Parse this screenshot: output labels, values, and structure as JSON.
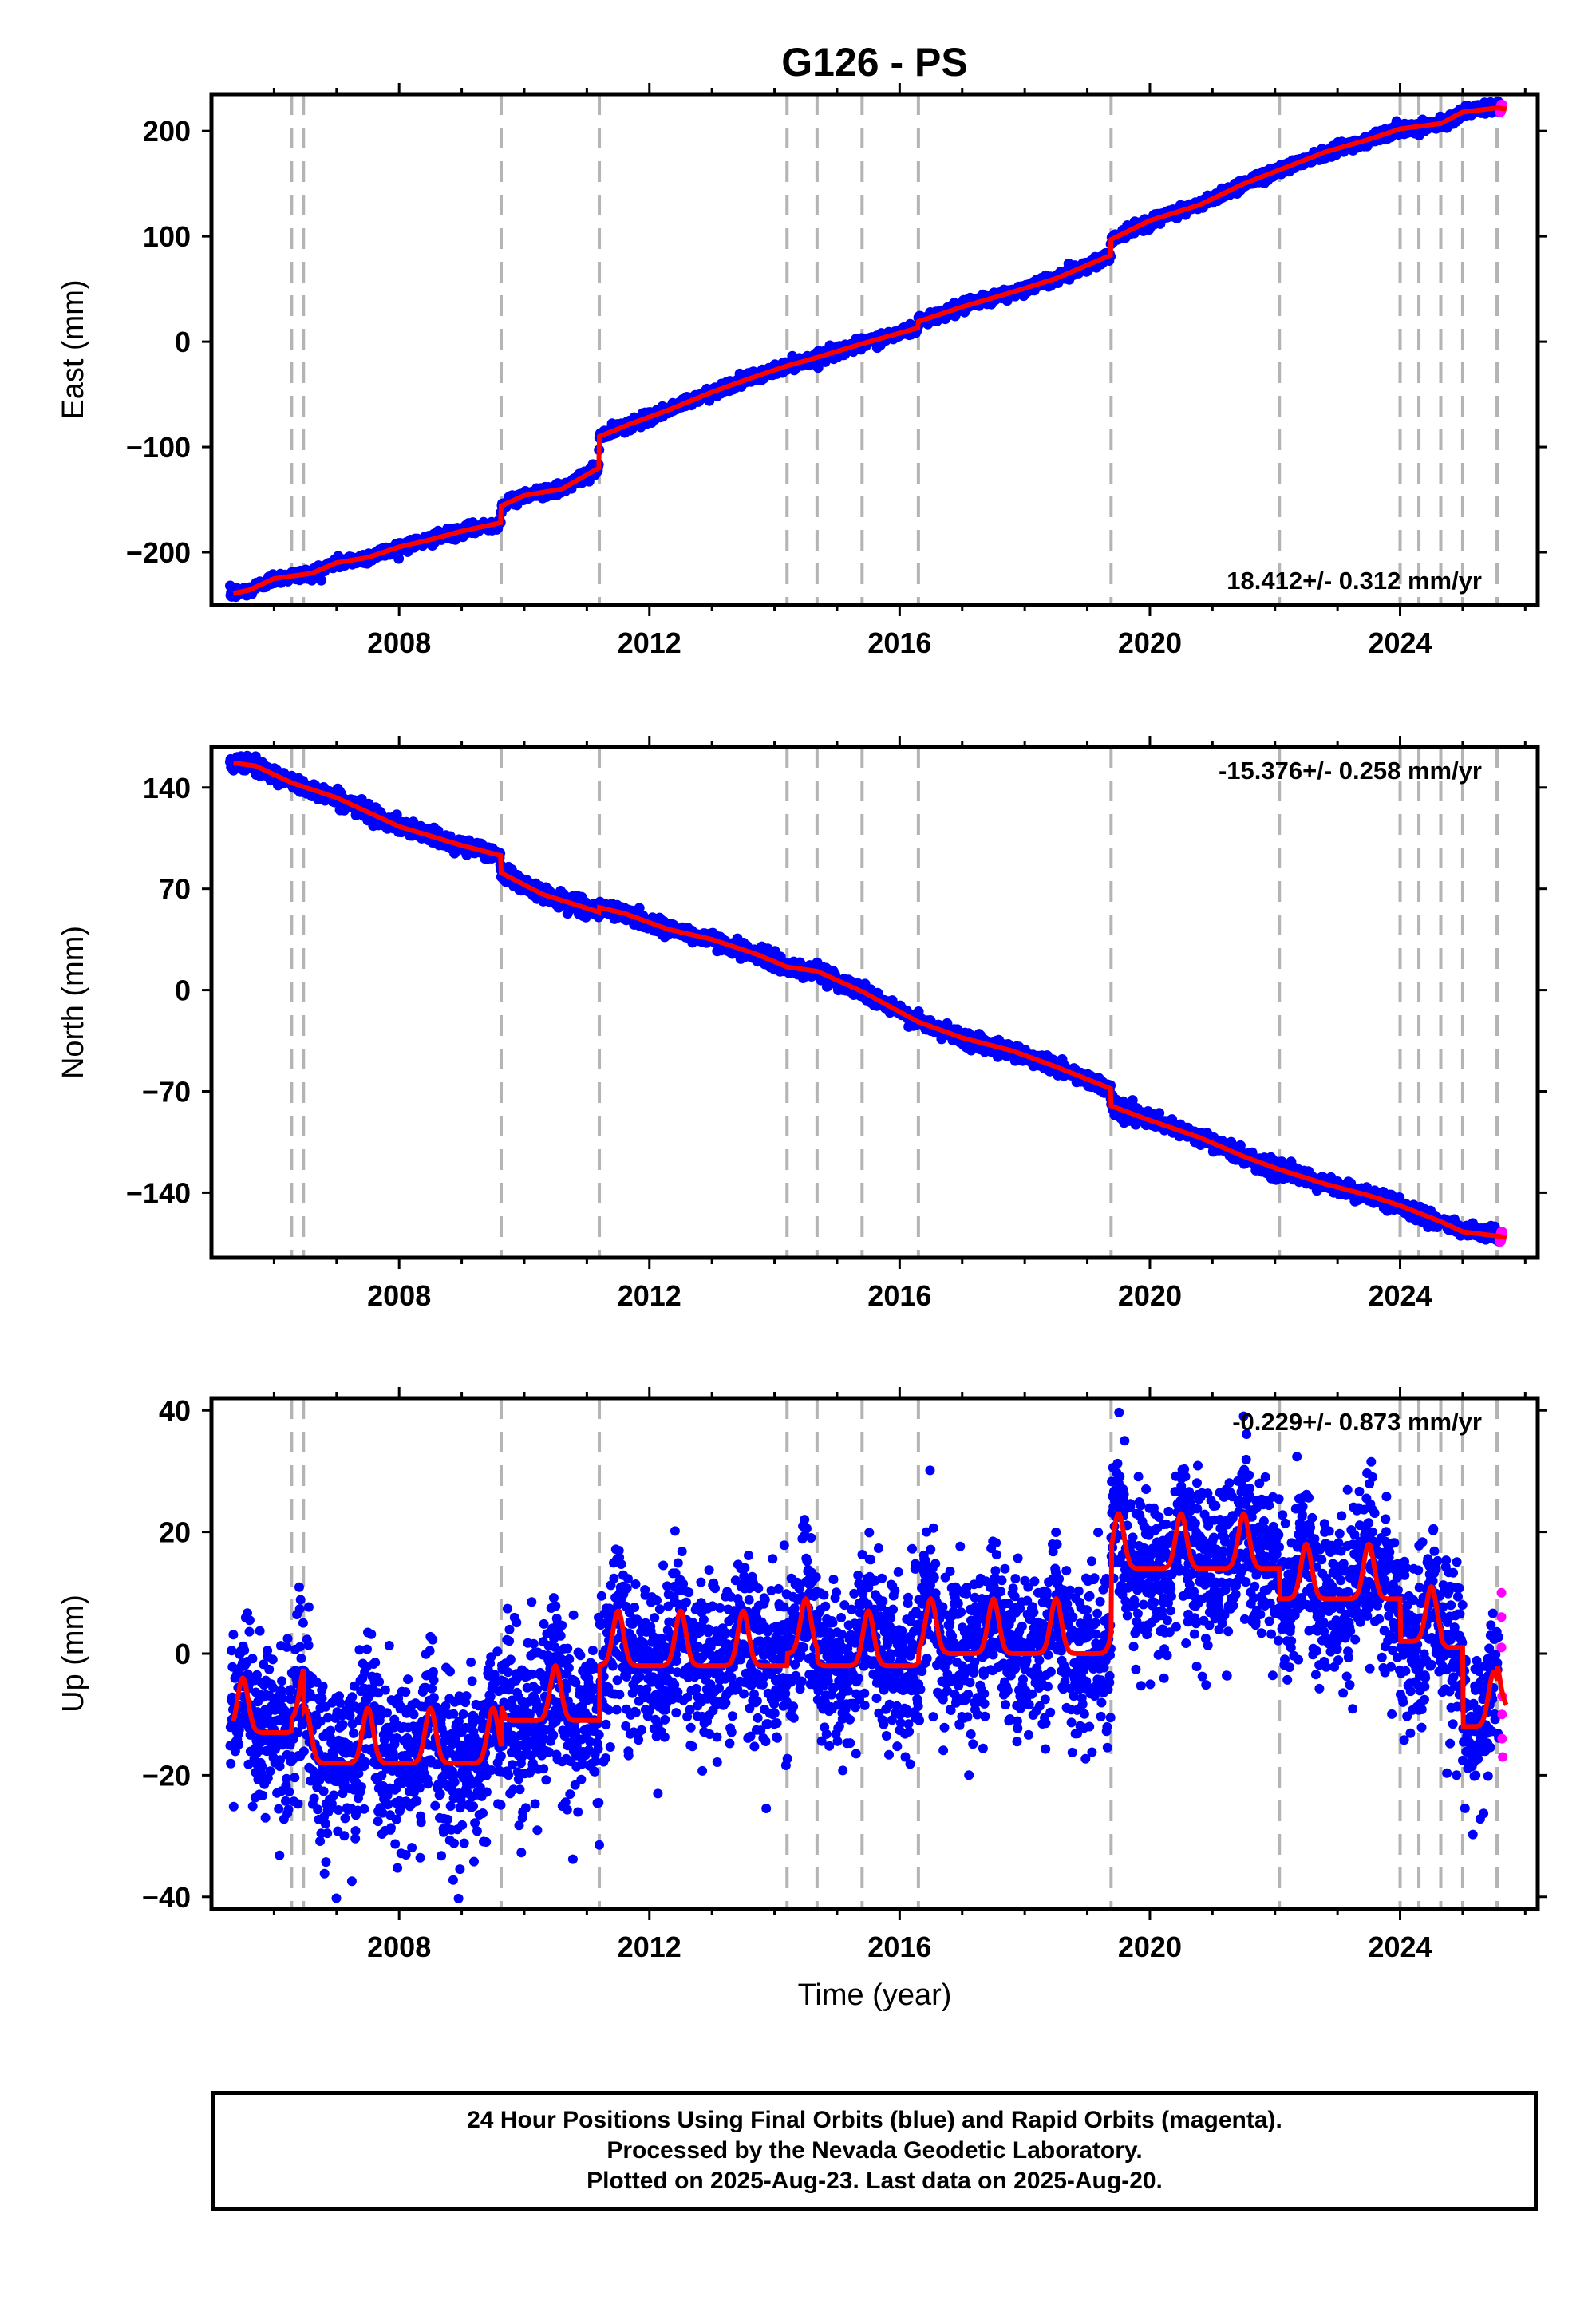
{
  "title": "G126 - PS",
  "xlabel": "Time (year)",
  "footer": {
    "line1": "24 Hour Positions Using Final Orbits (blue) and Rapid Orbits (magenta).",
    "line2": "Processed by the Nevada Geodetic Laboratory.",
    "line3": "Plotted on 2025-Aug-23. Last data on 2025-Aug-20."
  },
  "colors": {
    "final_orbits": "#0000ff",
    "rapid_orbits": "#ff00ff",
    "model": "#ff0000",
    "event_lines": "#b4b4b4"
  },
  "chart_data": [
    {
      "type": "scatter",
      "panel": "east",
      "ylabel": "East (mm)",
      "xlim": [
        2005.0,
        2026.2
      ],
      "ylim": [
        -250,
        235
      ],
      "yticks": [
        -200,
        -100,
        0,
        100,
        200
      ],
      "xticks": [
        2008,
        2012,
        2016,
        2020,
        2024
      ],
      "rate_label": "18.412+/- 0.312 mm/yr",
      "rate_position": "bottom-right",
      "grid": false,
      "event_lines": [
        2006.28,
        2006.47,
        2009.63,
        2011.2,
        2014.2,
        2014.68,
        2015.4,
        2016.3,
        2019.38,
        2022.07,
        2024.0,
        2024.3,
        2024.65,
        2025.0,
        2025.55
      ],
      "model": {
        "x": [
          2005.35,
          2005.6,
          2006.0,
          2006.6,
          2007.0,
          2007.5,
          2008.0,
          2008.5,
          2009.0,
          2009.62,
          2009.63,
          2010.0,
          2010.6,
          2011.19,
          2011.2,
          2011.7,
          2012.3,
          2013.0,
          2013.6,
          2014.2,
          2014.68,
          2015.4,
          2016.29,
          2016.3,
          2017.0,
          2017.8,
          2018.5,
          2019.37,
          2019.38,
          2020.0,
          2020.8,
          2021.5,
          2022.07,
          2022.8,
          2023.5,
          2024.0,
          2024.65,
          2025.0,
          2025.55,
          2025.7
        ],
        "y": [
          -239,
          -236,
          -225,
          -220,
          -210,
          -205,
          -195,
          -188,
          -180,
          -172,
          -156,
          -146,
          -140,
          -120,
          -90,
          -78,
          -65,
          -48,
          -35,
          -23,
          -15,
          -2,
          13,
          19,
          33,
          47,
          60,
          82,
          97,
          115,
          130,
          150,
          163,
          180,
          192,
          202,
          207,
          218,
          222,
          221
        ]
      },
      "final_orbits": "dense daily positions, 2005.3-2025.6, scatter about the model of roughly +/-3 mm",
      "rapid_orbits": "last days near 2025.6 around 222 mm"
    },
    {
      "type": "scatter",
      "panel": "north",
      "ylabel": "North (mm)",
      "xlim": [
        2005.0,
        2026.2
      ],
      "ylim": [
        -185,
        168
      ],
      "yticks": [
        -140,
        -70,
        0,
        70,
        140
      ],
      "xticks": [
        2008,
        2012,
        2016,
        2020,
        2024
      ],
      "rate_label": "-15.376+/- 0.258 mm/yr",
      "rate_position": "top-right",
      "grid": false,
      "event_lines": [
        2006.28,
        2006.47,
        2009.63,
        2011.2,
        2014.2,
        2014.68,
        2015.4,
        2016.3,
        2019.38,
        2022.07,
        2024.0,
        2024.3,
        2024.65,
        2025.0,
        2025.55
      ],
      "model": {
        "x": [
          2005.35,
          2005.7,
          2006.3,
          2007.0,
          2008.0,
          2009.0,
          2009.62,
          2009.63,
          2010.3,
          2011.19,
          2011.2,
          2011.6,
          2012.3,
          2013.0,
          2013.7,
          2014.2,
          2014.68,
          2015.4,
          2016.3,
          2017.0,
          2017.8,
          2018.5,
          2019.37,
          2019.38,
          2020.0,
          2020.8,
          2021.5,
          2022.07,
          2022.8,
          2023.5,
          2024.0,
          2024.65,
          2025.0,
          2025.55,
          2025.7
        ],
        "y": [
          157,
          155,
          143,
          133,
          113,
          100,
          93,
          81,
          66,
          54,
          57,
          53,
          42,
          35,
          25,
          16,
          13,
          -1,
          -22,
          -33,
          -42,
          -53,
          -68,
          -80,
          -90,
          -102,
          -115,
          -124,
          -134,
          -142,
          -149,
          -160,
          -167,
          -170,
          -171
        ]
      },
      "final_orbits": "dense daily positions, 2005.3-2025.6, scatter about the model of roughly +/-3 mm",
      "rapid_orbits": "last days near 2025.6 around -168 mm"
    },
    {
      "type": "scatter",
      "panel": "up",
      "ylabel": "Up (mm)",
      "xlim": [
        2005.0,
        2026.2
      ],
      "ylim": [
        -42,
        42
      ],
      "yticks": [
        -40,
        -20,
        0,
        20,
        40
      ],
      "xticks": [
        2008,
        2012,
        2016,
        2020,
        2024
      ],
      "rate_label": "-0.229+/- 0.873 mm/yr",
      "rate_position": "top-right",
      "grid": false,
      "event_lines": [
        2006.28,
        2006.47,
        2009.63,
        2011.2,
        2014.2,
        2014.68,
        2015.4,
        2016.3,
        2019.38,
        2022.07,
        2024.0,
        2024.3,
        2024.65,
        2025.0,
        2025.55
      ],
      "model": {
        "description": "offset segments between event lines plus annual sinusoid (amplitude about 4-5 mm)",
        "segment_offsets": [
          {
            "x": [
              2005.35,
              2006.28
            ],
            "y": -10
          },
          {
            "x": [
              2006.28,
              2006.47
            ],
            "y": -8
          },
          {
            "x": [
              2006.47,
              2009.63
            ],
            "y": -15
          },
          {
            "x": [
              2009.63,
              2011.2
            ],
            "y": -8
          },
          {
            "x": [
              2011.2,
              2014.2
            ],
            "y": 1
          },
          {
            "x": [
              2014.2,
              2014.68
            ],
            "y": 3
          },
          {
            "x": [
              2014.68,
              2015.4
            ],
            "y": 1
          },
          {
            "x": [
              2015.4,
              2016.3
            ],
            "y": 1
          },
          {
            "x": [
              2016.3,
              2019.38
            ],
            "y": 3
          },
          {
            "x": [
              2019.38,
              2022.07
            ],
            "y": 17
          },
          {
            "x": [
              2022.07,
              2024.0
            ],
            "y": 12
          },
          {
            "x": [
              2024.0,
              2024.65
            ],
            "y": 5
          },
          {
            "x": [
              2024.65,
              2025.0
            ],
            "y": 4
          },
          {
            "x": [
              2025.0,
              2025.55
            ],
            "y": -9
          },
          {
            "x": [
              2025.55,
              2025.7
            ],
            "y": -6
          }
        ]
      },
      "final_orbits": "dense daily positions, 2005.3-2025.6, scatter of roughly +/-7 mm around the model",
      "rapid_orbits": [
        {
          "x": 2025.62,
          "y": 10
        },
        {
          "x": 2025.62,
          "y": 6
        },
        {
          "x": 2025.62,
          "y": 1
        },
        {
          "x": 2025.63,
          "y": -7
        },
        {
          "x": 2025.63,
          "y": -10
        },
        {
          "x": 2025.63,
          "y": -14
        },
        {
          "x": 2025.64,
          "y": -17
        }
      ]
    }
  ]
}
